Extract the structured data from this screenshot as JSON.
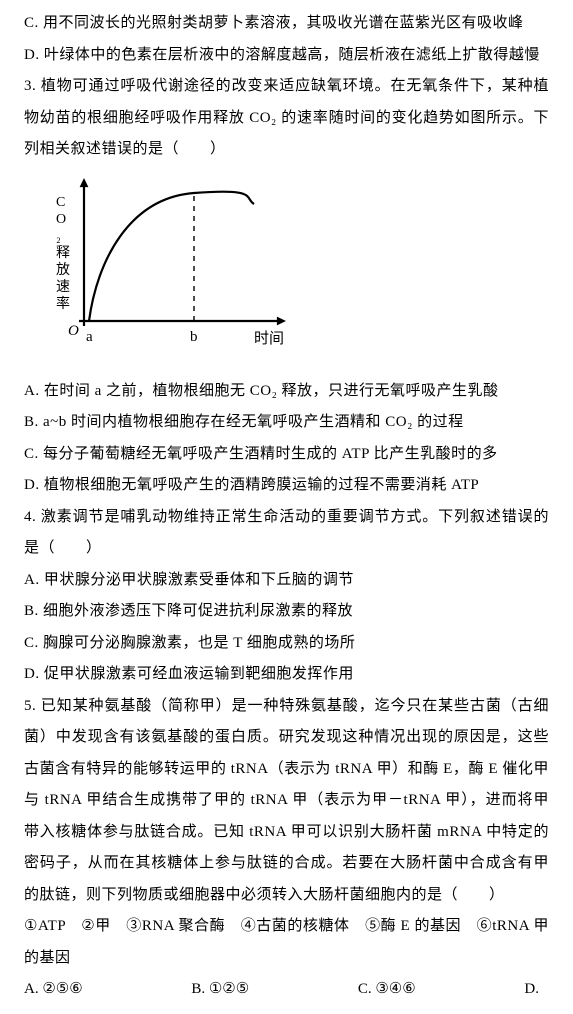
{
  "option_c": "C. 用不同波长的光照射类胡萝卜素溶液，其吸收光谱在蓝紫光区有吸收峰",
  "option_d": "D. 叶绿体中的色素在层析液中的溶解度越高，随层析液在滤纸上扩散得越慢",
  "q3_stem": "3. 植物可通过呼吸代谢途径的改变来适应缺氧环境。在无氧条件下，某种植物幼苗的根细胞经呼吸作用释放 CO₂ 的速率随时间的变化趋势如图所示。下列相关叙述错误的是（　　）",
  "chart": {
    "type": "line",
    "y_label": "CO₂释放速率",
    "x_label": "时间",
    "x_ticks": [
      "a",
      "b"
    ],
    "axis_color": "#000000",
    "curve_color": "#000000",
    "background": "#ffffff",
    "stroke_width": 2.2,
    "arrow_size": 7,
    "curve_points": [
      [
        35,
        145
      ],
      [
        40,
        125
      ],
      [
        50,
        90
      ],
      [
        65,
        55
      ],
      [
        85,
        32
      ],
      [
        110,
        20
      ],
      [
        140,
        17
      ],
      [
        160,
        18
      ],
      [
        185,
        23
      ],
      [
        200,
        28
      ]
    ],
    "a_x": 35,
    "b_x": 140,
    "y_origin": 145,
    "curve_top_at_b": 17
  },
  "q3_a": "A. 在时间 a 之前，植物根细胞无 CO₂ 释放，只进行无氧呼吸产生乳酸",
  "q3_b": "B. a~b 时间内植物根细胞存在经无氧呼吸产生酒精和 CO₂ 的过程",
  "q3_c": "C. 每分子葡萄糖经无氧呼吸产生酒精时生成的 ATP 比产生乳酸时的多",
  "q3_d": "D. 植物根细胞无氧呼吸产生的酒精跨膜运输的过程不需要消耗 ATP",
  "q4_stem": "4. 激素调节是哺乳动物维持正常生命活动的重要调节方式。下列叙述错误的是（　　）",
  "q4_a": "A. 甲状腺分泌甲状腺激素受垂体和下丘脑的调节",
  "q4_b": "B. 细胞外液渗透压下降可促进抗利尿激素的释放",
  "q4_c": "C. 胸腺可分泌胸腺激素，也是 T 细胞成熟的场所",
  "q4_d": "D. 促甲状腺激素可经血液运输到靶细胞发挥作用",
  "q5_stem": "5. 已知某种氨基酸（简称甲）是一种特殊氨基酸，迄今只在某些古菌（古细菌）中发现含有该氨基酸的蛋白质。研究发现这种情况出现的原因是，这些古菌含有特异的能够转运甲的 tRNA（表示为 tRNA 甲）和酶 E，酶 E 催化甲与 tRNA 甲结合生成携带了甲的 tRNA 甲（表示为甲－tRNA 甲），进而将甲带入核糖体参与肽链合成。已知 tRNA 甲可以识别大肠杆菌 mRNA 中特定的密码子，从而在其核糖体上参与肽链的合成。若要在大肠杆菌中合成含有甲的肽链，则下列物质或细胞器中必须转入大肠杆菌细胞内的是（　　）",
  "q5_choices": "①ATP　②甲　③RNA 聚合酶　④古菌的核糖体　⑤酶 E 的基因　⑥tRNA 甲的基因",
  "q5_opts": {
    "a": "A. ②⑤⑥",
    "b": "B. ①②⑤",
    "c": "C. ③④⑥",
    "d": "D."
  }
}
